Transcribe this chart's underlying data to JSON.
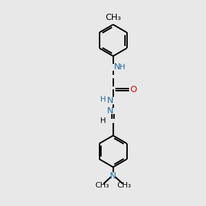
{
  "background_color": "#e8e8e8",
  "bond_color": "#000000",
  "N_color": "#1a6b9a",
  "O_color": "#cc0000",
  "lw": 1.5,
  "fs": 9,
  "fig_size": [
    3.0,
    3.0
  ],
  "dpi": 100,
  "xlim": [
    0,
    10
  ],
  "ylim": [
    0,
    10
  ]
}
